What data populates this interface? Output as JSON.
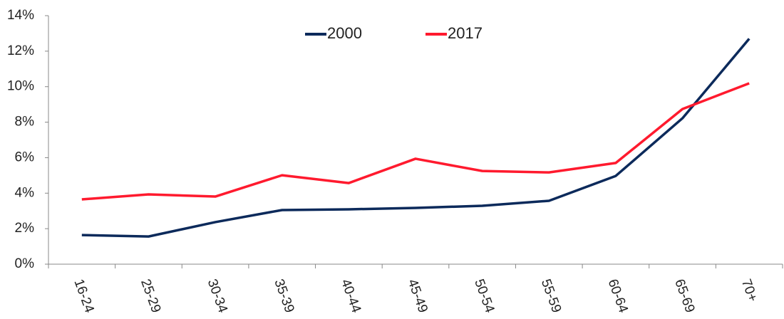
{
  "chart_data": {
    "type": "line",
    "categories": [
      "16-24",
      "25-29",
      "30-34",
      "35-39",
      "40-44",
      "45-49",
      "50-54",
      "55-59",
      "60-64",
      "65-69",
      "70+"
    ],
    "series": [
      {
        "name": "2000",
        "color": "#0c2a5b",
        "values": [
          1.64,
          1.56,
          2.37,
          3.05,
          3.09,
          3.17,
          3.29,
          3.57,
          4.97,
          8.22,
          12.7
        ]
      },
      {
        "name": "2017",
        "color": "#ff1a2e",
        "values": [
          3.65,
          3.93,
          3.81,
          5.01,
          4.57,
          5.94,
          5.25,
          5.17,
          5.7,
          8.74,
          10.19
        ]
      }
    ],
    "ylim": [
      0,
      14
    ],
    "yticks": [
      {
        "value": 0,
        "label": "0%"
      },
      {
        "value": 2,
        "label": "2%"
      },
      {
        "value": 4,
        "label": "4%"
      },
      {
        "value": 6,
        "label": "6%"
      },
      {
        "value": 8,
        "label": "8%"
      },
      {
        "value": 10,
        "label": "10%"
      },
      {
        "value": 12,
        "label": "12%"
      },
      {
        "value": 14,
        "label": "14%"
      }
    ],
    "grid": false,
    "legend": "top"
  }
}
